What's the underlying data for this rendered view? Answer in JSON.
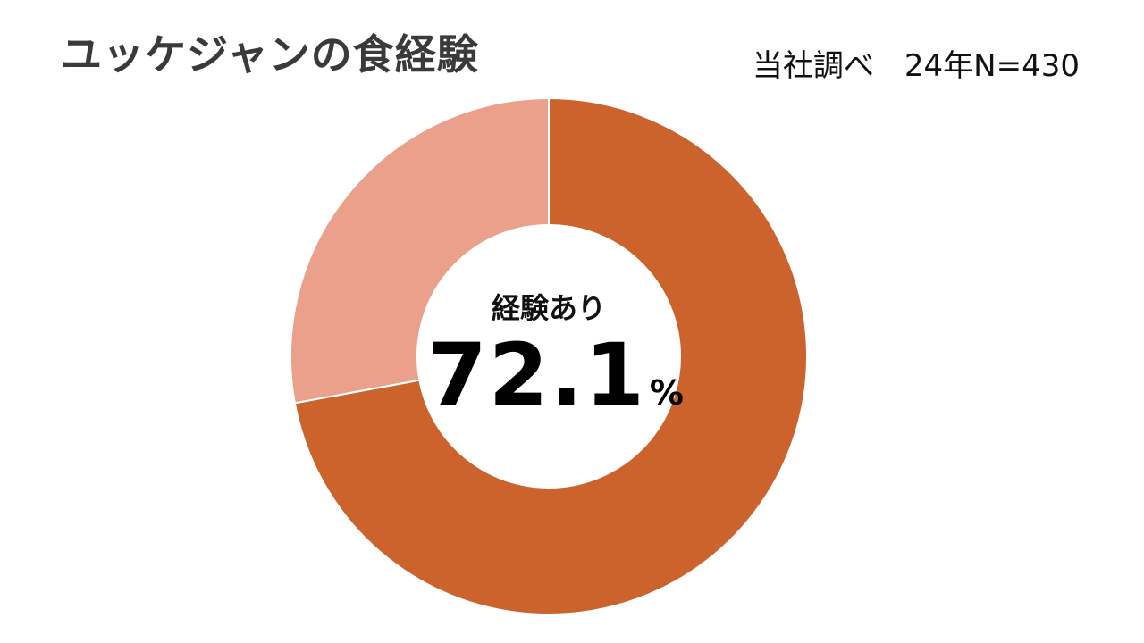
{
  "chart_data": {
    "type": "pie",
    "style": "donut",
    "title": "ユッケジャンの食経験",
    "source_note": "当社調べ　24年N=430",
    "categories": [
      "経験あり",
      ""
    ],
    "values": [
      72.1,
      27.9
    ],
    "colors": [
      "#cc632c",
      "#eba08b"
    ],
    "center_label": "経験あり",
    "center_value": "72.1",
    "center_unit": "%",
    "legend": "none"
  }
}
